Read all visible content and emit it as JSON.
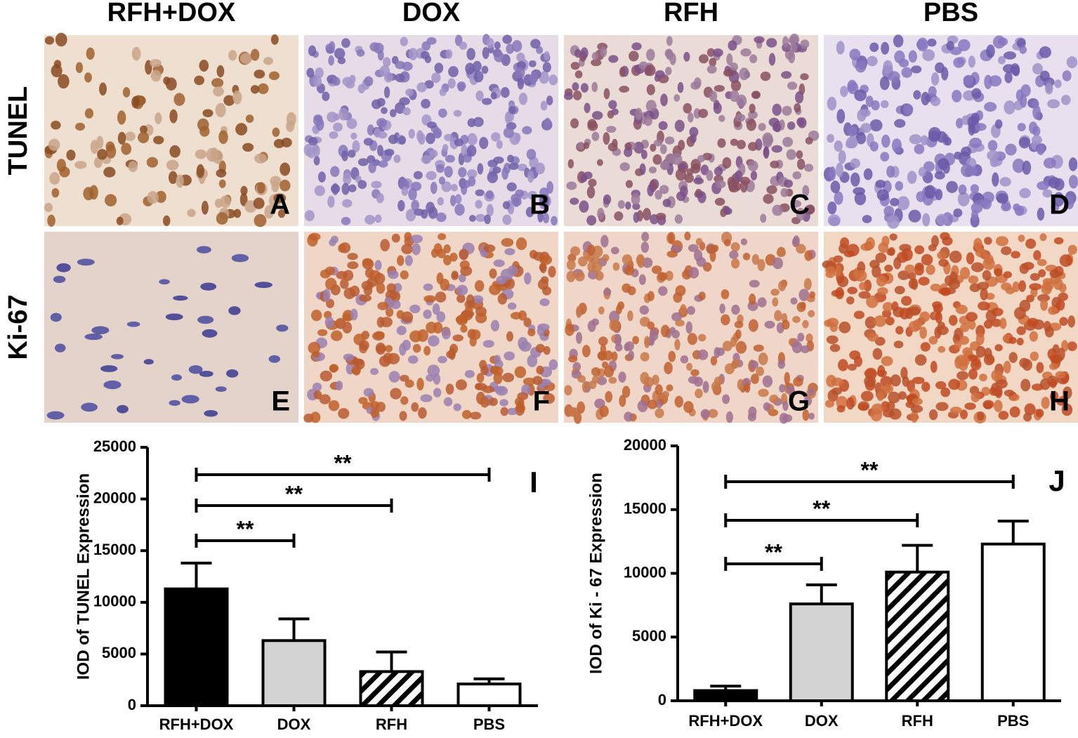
{
  "panels": {
    "columns": [
      "RFH+DOX",
      "DOX",
      "RFH",
      "PBS"
    ],
    "rows": [
      "TUNEL",
      "Ki-67"
    ],
    "letters": [
      "A",
      "B",
      "C",
      "D",
      "E",
      "F",
      "G",
      "H"
    ]
  },
  "chart_data": [
    {
      "type": "bar",
      "panel_label": "I",
      "ylabel": "IOD of TUNEL Expression",
      "categories": [
        "RFH+DOX",
        "DOX",
        "RFH",
        "PBS"
      ],
      "values": [
        11300,
        6300,
        3300,
        2100
      ],
      "errors": [
        2500,
        2100,
        1900,
        500
      ],
      "fills": [
        "#000000",
        "#d3d3d3",
        "hatch",
        "#ffffff"
      ],
      "ylim": [
        0,
        25000
      ],
      "yticks": [
        0,
        5000,
        10000,
        15000,
        20000,
        25000
      ],
      "annotations": [
        {
          "from": 0,
          "to": 1,
          "label": "**"
        },
        {
          "from": 0,
          "to": 2,
          "label": "**"
        },
        {
          "from": 0,
          "to": 3,
          "label": "**"
        }
      ]
    },
    {
      "type": "bar",
      "panel_label": "J",
      "ylabel": "IOD of Ki - 67 Expression",
      "categories": [
        "RFH+DOX",
        "DOX",
        "RFH",
        "PBS"
      ],
      "values": [
        800,
        7600,
        10100,
        12300
      ],
      "errors": [
        350,
        1500,
        2100,
        1800
      ],
      "fills": [
        "#000000",
        "#d3d3d3",
        "hatch",
        "#ffffff"
      ],
      "ylim": [
        0,
        20000
      ],
      "yticks": [
        0,
        5000,
        10000,
        15000,
        20000
      ],
      "annotations": [
        {
          "from": 0,
          "to": 1,
          "label": "**"
        },
        {
          "from": 0,
          "to": 2,
          "label": "**"
        },
        {
          "from": 0,
          "to": 3,
          "label": "**"
        }
      ]
    }
  ]
}
